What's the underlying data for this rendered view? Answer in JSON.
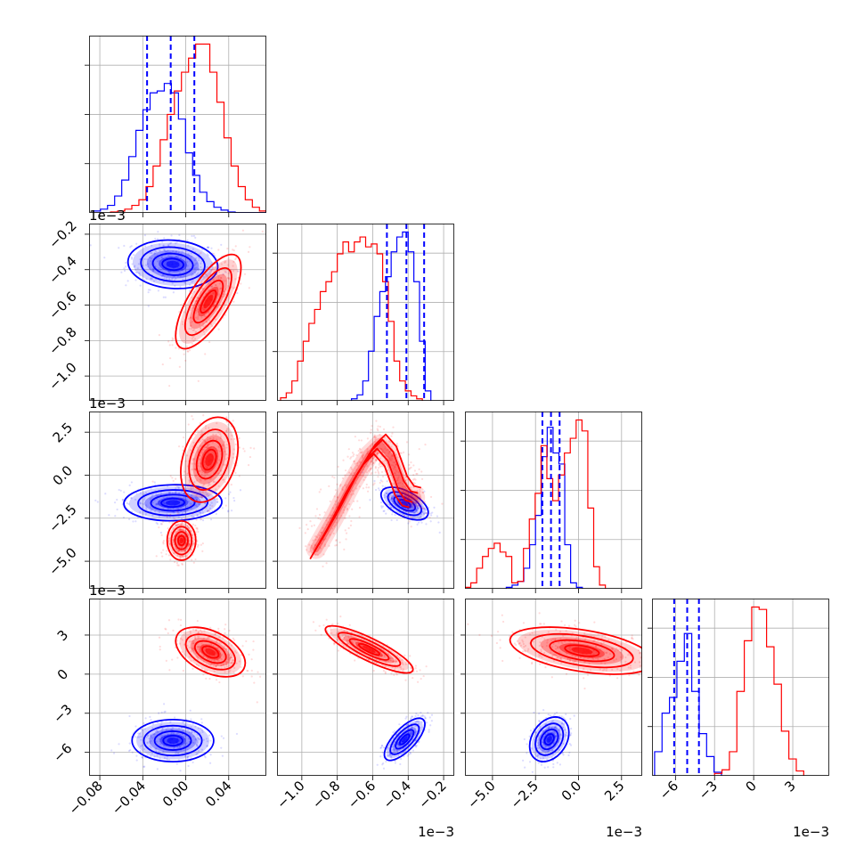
{
  "chart_data": {
    "type": "corner",
    "series": [
      {
        "color": "#0000ff"
      },
      {
        "color": "#ff0000"
      }
    ],
    "parameters": [
      {
        "lim": [
          -0.09,
          0.075
        ],
        "ticks": [
          -0.08,
          -0.04,
          0.0,
          0.04
        ],
        "tick_labels": [
          "−0.08",
          "−0.04",
          "0.00",
          "0.04"
        ],
        "offset": ""
      },
      {
        "lim": [
          -1.14,
          -0.14
        ],
        "ticks": [
          -1.0,
          -0.8,
          -0.6,
          -0.4,
          -0.2
        ],
        "tick_labels": [
          "−1.0",
          "−0.8",
          "−0.6",
          "−0.4",
          "−0.2"
        ],
        "offset": "1e−3"
      },
      {
        "lim": [
          -6.6,
          3.7
        ],
        "ticks": [
          -5.0,
          -2.5,
          0.0,
          2.5
        ],
        "tick_labels": [
          "−5.0",
          "−2.5",
          "0.0",
          "2.5"
        ],
        "offset": "1e−3"
      },
      {
        "lim": [
          -7.8,
          5.8
        ],
        "ticks": [
          -6,
          -3,
          0,
          3
        ],
        "tick_labels": [
          "−6",
          "−3",
          "0",
          "3"
        ],
        "offset": "1e−3"
      }
    ],
    "marginals": [
      {
        "quantiles": [
          -0.036,
          -0.014,
          0.008
        ],
        "blue": {
          "start": -0.086,
          "step": 0.0066,
          "counts": [
            2,
            4,
            8,
            18,
            35,
            60,
            88,
            110,
            128,
            130,
            138,
            128,
            100,
            64,
            40,
            22,
            12,
            6,
            3,
            1,
            0,
            0,
            0,
            0,
            0
          ]
        },
        "red": {
          "start": -0.07,
          "step": 0.0066,
          "counts": [
            1,
            2,
            4,
            8,
            14,
            28,
            50,
            78,
            105,
            130,
            150,
            165,
            180,
            180,
            150,
            118,
            80,
            50,
            28,
            14,
            6,
            2,
            1
          ]
        }
      },
      {
        "quantiles": [
          -0.52,
          -0.41,
          -0.31
        ],
        "blue": {
          "start": -0.72,
          "step": 0.032,
          "counts": [
            2,
            6,
            20,
            50,
            85,
            110,
            125,
            150,
            165,
            170,
            150,
            120,
            60,
            10
          ]
        },
        "red": {
          "start": -1.12,
          "step": 0.032,
          "counts": [
            3,
            8,
            20,
            40,
            60,
            78,
            92,
            110,
            120,
            130,
            148,
            160,
            150,
            160,
            165,
            155,
            158,
            148,
            120,
            80,
            40,
            20,
            10,
            5,
            2
          ]
        }
      },
      {
        "quantiles": [
          -2.1,
          -1.6,
          -1.1
        ],
        "blue": {
          "start": -4.2,
          "step": 0.34,
          "counts": [
            2,
            5,
            10,
            28,
            60,
            100,
            180,
            220,
            185,
            170,
            60,
            8,
            2
          ]
        },
        "red": {
          "start": -6.6,
          "step": 0.34,
          "counts": [
            2,
            8,
            28,
            44,
            55,
            62,
            50,
            44,
            8,
            10,
            55,
            95,
            130,
            195,
            150,
            120,
            155,
            185,
            205,
            230,
            215,
            110,
            30,
            5
          ]
        }
      },
      {
        "quantiles": [
          -6.1,
          -5.1,
          -4.2
        ],
        "blue": {
          "start": -7.6,
          "step": 0.57,
          "counts": [
            20,
            52,
            65,
            95,
            118,
            70,
            35,
            16,
            3
          ]
        },
        "red": {
          "start": -3.0,
          "step": 0.57,
          "counts": [
            2,
            5,
            20,
            70,
            112,
            140,
            138,
            107,
            76,
            37,
            14,
            4
          ]
        }
      }
    ],
    "scatter": [
      {
        "row": 1,
        "col": 0,
        "blue": {
          "center": [
            -0.012,
            -0.37
          ],
          "spread": [
            0.022,
            0.072
          ],
          "corr": -0.1
        },
        "red": {
          "center": [
            0.021,
            -0.58
          ],
          "spread": [
            0.016,
            0.14
          ],
          "corr": 0.72
        }
      },
      {
        "row": 2,
        "col": 0,
        "blue": {
          "center": [
            -0.012,
            -1.6
          ],
          "spread": [
            0.024,
            0.55
          ],
          "corr": 0.05
        },
        "red": {
          "center": [
            0.022,
            0.9
          ],
          "spread": [
            0.014,
            1.3
          ],
          "corr": 0.3,
          "extra": {
            "center": [
              -0.004,
              -3.8
            ],
            "spread": [
              0.007,
              0.6
            ],
            "weight": 0.16
          }
        }
      },
      {
        "row": 2,
        "col": 1,
        "blue": {
          "center": [
            -0.42,
            -1.65
          ],
          "spread": [
            0.07,
            0.5
          ],
          "corr": -0.55
        },
        "red": {
          "arch": true
        }
      },
      {
        "row": 3,
        "col": 0,
        "blue": {
          "center": [
            -0.012,
            -5.1
          ],
          "spread": [
            0.02,
            0.85
          ],
          "corr": 0.0
        },
        "red": {
          "center": [
            0.023,
            1.7
          ],
          "spread": [
            0.017,
            1.0
          ],
          "corr": -0.45
        }
      },
      {
        "row": 3,
        "col": 1,
        "blue": {
          "center": [
            -0.42,
            -5.0
          ],
          "spread": [
            0.06,
            0.85
          ],
          "corr": 0.72
        },
        "red": {
          "center": [
            -0.62,
            1.9
          ],
          "spread": [
            0.13,
            0.95
          ],
          "corr": -0.85
        }
      },
      {
        "row": 3,
        "col": 2,
        "blue": {
          "center": [
            -1.7,
            -5.0
          ],
          "spread": [
            0.6,
            0.9
          ],
          "corr": 0.3
        },
        "red": {
          "center": [
            0.2,
            1.8
          ],
          "spread": [
            2.2,
            0.95
          ],
          "corr": -0.45
        }
      }
    ]
  }
}
